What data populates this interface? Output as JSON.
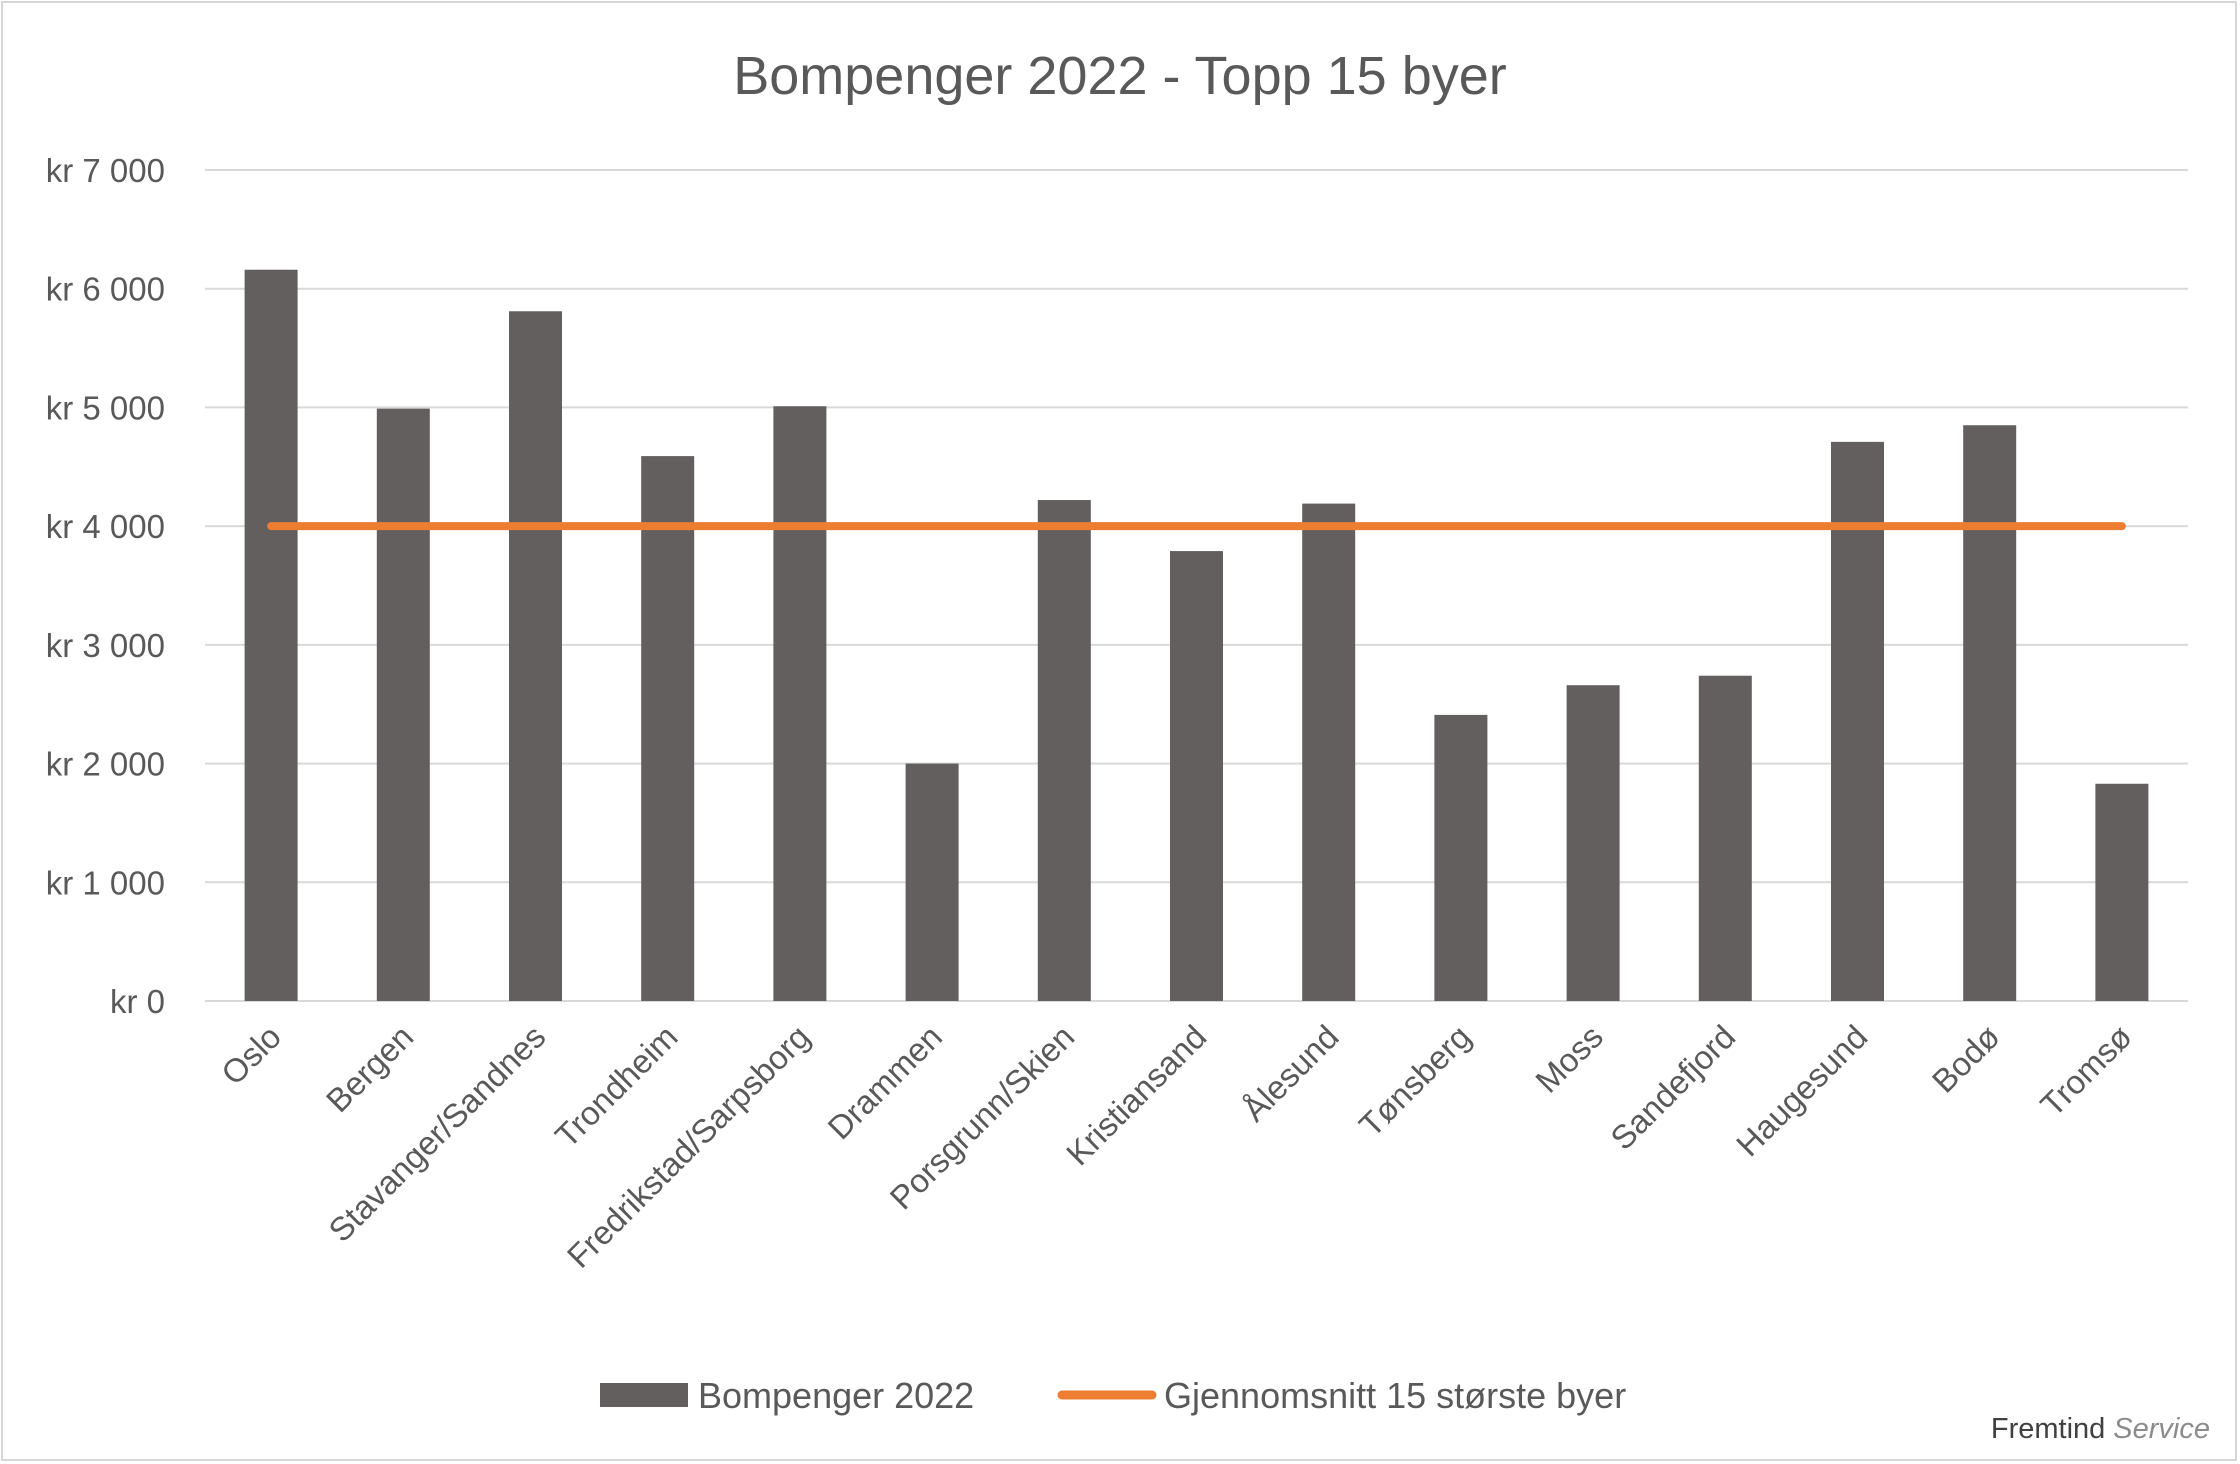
{
  "chart_data": {
    "type": "bar",
    "title": "Bompenger 2022 - Topp 15 byer",
    "categories": [
      "Oslo",
      "Bergen",
      "Stavanger/Sandnes",
      "Trondheim",
      "Fredrikstad/Sarpsborg",
      "Drammen",
      "Porsgrunn/Skien",
      "Kristiansand",
      "Ålesund",
      "Tønsberg",
      "Moss",
      "Sandefjord",
      "Haugesund",
      "Bodø",
      "Tromsø"
    ],
    "series": [
      {
        "name": "Bompenger 2022",
        "type": "bar",
        "color": "#625f5e",
        "values": [
          6160,
          4990,
          5810,
          4590,
          5010,
          2000,
          4220,
          3790,
          4190,
          2410,
          2660,
          2740,
          4710,
          4850,
          1830
        ]
      },
      {
        "name": "Gjennomsnitt 15 største byer",
        "type": "line",
        "color": "#ed7d31",
        "values": [
          4000,
          4000,
          4000,
          4000,
          4000,
          4000,
          4000,
          4000,
          4000,
          4000,
          4000,
          4000,
          4000,
          4000,
          4000
        ]
      }
    ],
    "y_ticks": [
      "kr 0",
      "kr 1 000",
      "kr 2 000",
      "kr 3 000",
      "kr 4 000",
      "kr 5 000",
      "kr 6 000",
      "kr 7 000"
    ],
    "ylim": [
      0,
      7000
    ],
    "grid": true,
    "legend_position": "bottom"
  },
  "brand": {
    "name": "Fremtind",
    "suffix": "Service"
  }
}
